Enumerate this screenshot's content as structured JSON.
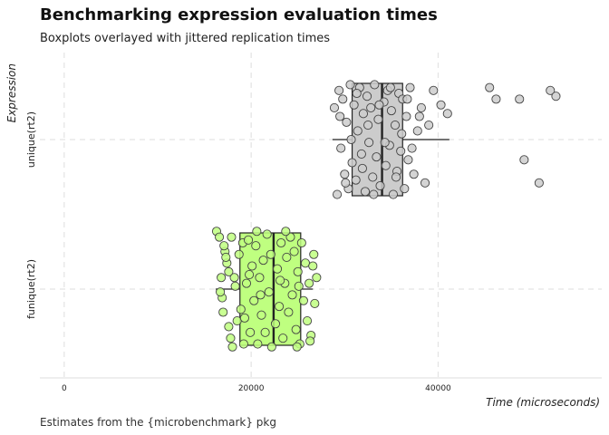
{
  "chart_data": {
    "type": "boxplot",
    "title": "Benchmarking expression evaluation times",
    "subtitle": "Boxplots overlayed with jittered replication times",
    "caption": "Estimates from the {microbenchmark} pkg",
    "xlabel": "Time (microseconds)",
    "ylabel": "Expression",
    "xlim": [
      -2600,
      57500
    ],
    "x_ticks": [
      0,
      20000,
      40000
    ],
    "x_tick_labels": [
      "0",
      "20000",
      "40000"
    ],
    "grid": true,
    "categories": [
      "funique(rt2)",
      "unique(rt2)"
    ],
    "series": [
      {
        "name": "funique(rt2)",
        "color": "#bfff80",
        "whisker_low": 16200,
        "q1": 18800,
        "median": 22400,
        "q3": 25300,
        "whisker_high": 26600,
        "points": [
          [
            16300,
            0.2
          ],
          [
            16600,
            0.18
          ],
          [
            17000,
            -0.08
          ],
          [
            17200,
            0.13
          ],
          [
            16800,
            0.04
          ],
          [
            17400,
            0.09
          ],
          [
            17600,
            -0.13
          ],
          [
            17800,
            -0.17
          ],
          [
            16900,
            -0.03
          ],
          [
            17300,
            0.11
          ],
          [
            17900,
            0.18
          ],
          [
            18200,
            0.04
          ],
          [
            18500,
            -0.11
          ],
          [
            17600,
            0.06
          ],
          [
            18700,
            0.12
          ],
          [
            18900,
            -0.07
          ],
          [
            19100,
            0.16
          ],
          [
            19300,
            -0.1
          ],
          [
            19500,
            0.02
          ],
          [
            19700,
            0.17
          ],
          [
            19900,
            -0.15
          ],
          [
            20100,
            0.08
          ],
          [
            20300,
            -0.04
          ],
          [
            20500,
            0.15
          ],
          [
            20700,
            -0.19
          ],
          [
            20900,
            0.04
          ],
          [
            21100,
            -0.09
          ],
          [
            21300,
            0.1
          ],
          [
            21500,
            -0.15
          ],
          [
            21700,
            0.19
          ],
          [
            21900,
            -0.01
          ],
          [
            22100,
            0.12
          ],
          [
            22600,
            -0.12
          ],
          [
            22800,
            0.07
          ],
          [
            23000,
            -0.06
          ],
          [
            23200,
            0.16
          ],
          [
            23400,
            -0.17
          ],
          [
            23600,
            0.02
          ],
          [
            23800,
            0.11
          ],
          [
            24000,
            -0.08
          ],
          [
            24200,
            0.18
          ],
          [
            24400,
            -0.02
          ],
          [
            24600,
            0.13
          ],
          [
            24800,
            -0.14
          ],
          [
            25000,
            0.06
          ],
          [
            25200,
            -0.19
          ],
          [
            25400,
            0.16
          ],
          [
            25600,
            -0.04
          ],
          [
            25800,
            0.09
          ],
          [
            26000,
            -0.11
          ],
          [
            26200,
            0.02
          ],
          [
            26400,
            -0.16
          ],
          [
            26600,
            0.08
          ],
          [
            26800,
            -0.05
          ],
          [
            27000,
            0.04
          ],
          [
            18000,
            -0.2
          ],
          [
            19200,
            -0.19
          ],
          [
            20600,
            0.2
          ],
          [
            22200,
            -0.2
          ],
          [
            23700,
            0.2
          ],
          [
            24900,
            -0.2
          ],
          [
            26300,
            -0.18
          ],
          [
            16700,
            -0.01
          ],
          [
            18300,
            0.01
          ],
          [
            21000,
            -0.02
          ],
          [
            23100,
            0.03
          ],
          [
            25100,
            0.01
          ],
          [
            26700,
            0.12
          ],
          [
            17100,
            0.15
          ],
          [
            19800,
            0.05
          ]
        ]
      },
      {
        "name": "unique(rt2)",
        "color": "#cccccc",
        "whisker_low": 28700,
        "q1": 30800,
        "median": 34000,
        "q3": 36200,
        "whisker_high": 41200,
        "points": [
          [
            28900,
            0.11
          ],
          [
            29200,
            -0.19
          ],
          [
            29400,
            0.17
          ],
          [
            29600,
            -0.03
          ],
          [
            29800,
            0.14
          ],
          [
            30000,
            -0.12
          ],
          [
            30200,
            0.06
          ],
          [
            30400,
            -0.17
          ],
          [
            30600,
            0.19
          ],
          [
            30800,
            -0.08
          ],
          [
            31000,
            0.12
          ],
          [
            31200,
            -0.14
          ],
          [
            31400,
            0.03
          ],
          [
            31600,
            0.18
          ],
          [
            31800,
            -0.05
          ],
          [
            32000,
            0.09
          ],
          [
            32200,
            -0.18
          ],
          [
            32400,
            0.15
          ],
          [
            32600,
            -0.01
          ],
          [
            32800,
            0.11
          ],
          [
            33000,
            -0.13
          ],
          [
            33200,
            0.19
          ],
          [
            33400,
            -0.06
          ],
          [
            33600,
            0.07
          ],
          [
            33800,
            -0.16
          ],
          [
            34200,
            0.13
          ],
          [
            34400,
            -0.09
          ],
          [
            34600,
            0.17
          ],
          [
            34800,
            -0.02
          ],
          [
            35000,
            0.1
          ],
          [
            35200,
            -0.19
          ],
          [
            35400,
            0.05
          ],
          [
            35600,
            -0.11
          ],
          [
            35800,
            0.16
          ],
          [
            36000,
            -0.04
          ],
          [
            36200,
            0.14
          ],
          [
            36400,
            -0.17
          ],
          [
            36600,
            0.08
          ],
          [
            36800,
            -0.07
          ],
          [
            37000,
            0.18
          ],
          [
            37400,
            -0.12
          ],
          [
            37800,
            0.03
          ],
          [
            38200,
            0.11
          ],
          [
            38600,
            -0.15
          ],
          [
            39000,
            0.05
          ],
          [
            39500,
            0.17
          ],
          [
            40300,
            0.12
          ],
          [
            41000,
            0.09
          ],
          [
            29500,
            0.08
          ],
          [
            30100,
            -0.15
          ],
          [
            30700,
            0.0
          ],
          [
            31300,
            0.16
          ],
          [
            31900,
            -0.1
          ],
          [
            32500,
            0.05
          ],
          [
            33100,
            -0.19
          ],
          [
            33700,
            0.12
          ],
          [
            34300,
            -0.01
          ],
          [
            34900,
            0.18
          ],
          [
            35500,
            -0.13
          ],
          [
            36100,
            0.02
          ],
          [
            36700,
            0.14
          ],
          [
            37200,
            -0.03
          ],
          [
            38000,
            0.08
          ],
          [
            45500,
            0.18
          ],
          [
            46200,
            0.14
          ],
          [
            48700,
            0.14
          ],
          [
            49200,
            -0.07
          ],
          [
            50800,
            -0.15
          ],
          [
            52000,
            0.17
          ],
          [
            52600,
            0.15
          ]
        ]
      }
    ]
  }
}
